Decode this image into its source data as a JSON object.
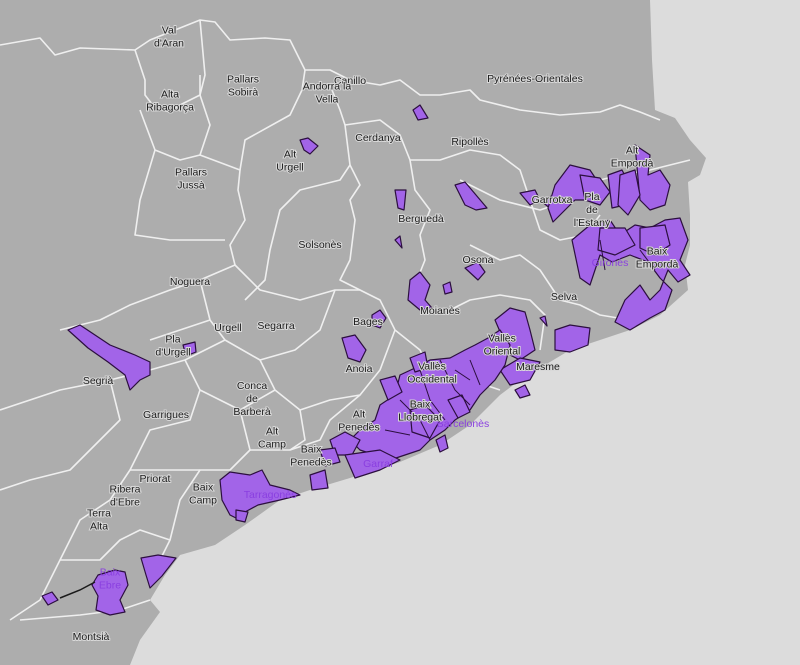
{
  "map": {
    "colors": {
      "sea": "#dcdcdc",
      "land": "#adadad",
      "boundary": "#efefef",
      "highlight_fill": "#a264e8",
      "highlight_stroke": "#2c0f3f"
    },
    "labels": [
      "Val\nd'Aran",
      "Pallars\nSobirà",
      "Alta\nRibagorça",
      "Canillo",
      "Andorra la\nVella",
      "Cerdanya",
      "Pyrénées-Orientales",
      "Alt\nUrgell",
      "Pallars\nJussà",
      "Ripollès",
      "Berguedà",
      "Alt\nEmpordà",
      "Garrotxa",
      "Pla\nde\nl'Estany",
      "Solsonès",
      "Osona",
      "Gironès",
      "Baix\nEmpordà",
      "Noguera",
      "Moianès",
      "Selva",
      "Bages",
      "Segarra",
      "Pla\nd'Urgell",
      "Urgell",
      "Segrià",
      "Anoia",
      "Vallès\nOriental",
      "Maresme",
      "Vallès\nOccidental",
      "Garrigues",
      "Conca\nde\nBarberà",
      "Alt\nPenedès",
      "Barcelonès",
      "Baix\nLlobregat",
      "Alt\nCamp",
      "Baix\nPenedès",
      "Garraf",
      "Priorat",
      "Baix\nCamp",
      "Tarragonès",
      "Ribera\nd'Ebre",
      "Terra\nAlta",
      "Baix\nEbre",
      "Montsià"
    ]
  }
}
